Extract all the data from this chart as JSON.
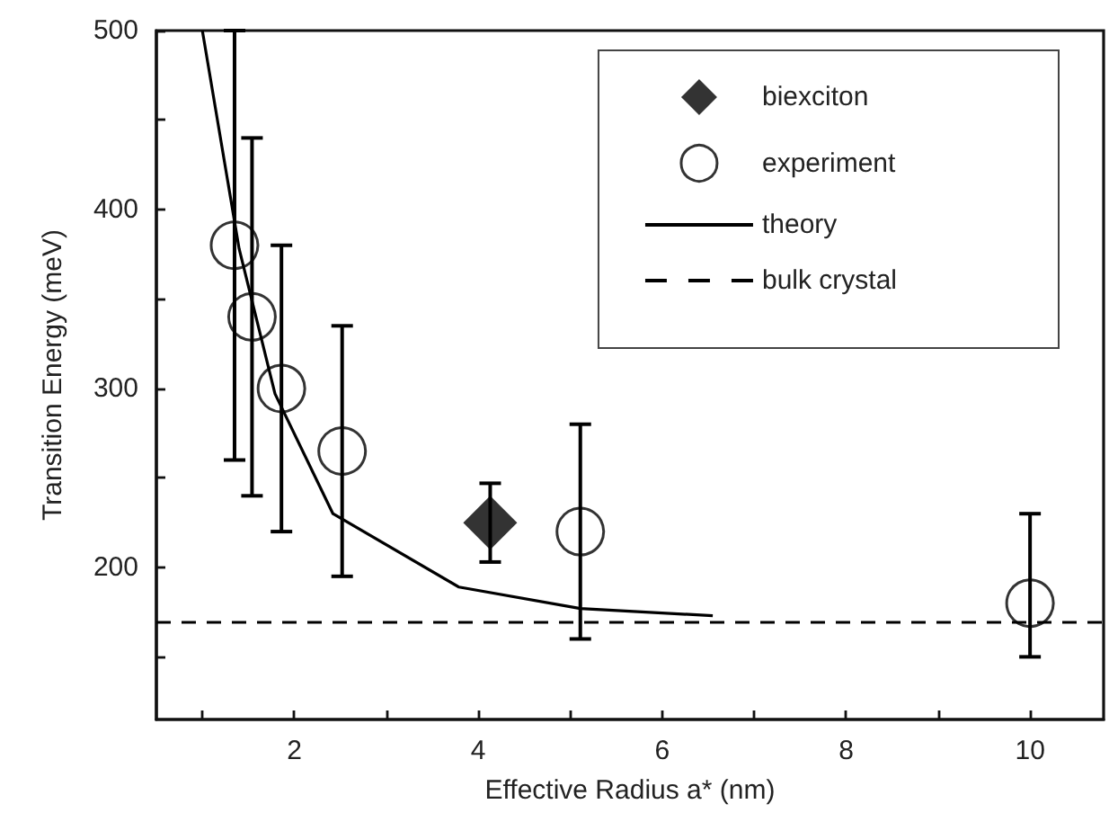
{
  "chart_data": {
    "type": "scatter",
    "xlabel": "Effective Radius a* (nm)",
    "ylabel": "Transition Energy (meV)",
    "xlim": [
      0.5,
      10.8
    ],
    "ylim": [
      115,
      500
    ],
    "xticks": [
      {
        "value": 1,
        "label": null
      },
      2,
      {
        "value": 3,
        "label": null
      },
      4,
      {
        "value": 5,
        "label": null
      },
      6,
      {
        "value": 7,
        "label": null
      },
      8,
      {
        "value": 9,
        "label": null
      },
      10
    ],
    "yticks": [
      {
        "value": 150,
        "label": null
      },
      200,
      {
        "value": 250,
        "label": null
      },
      300,
      {
        "value": 350,
        "label": null
      },
      400,
      {
        "value": 450,
        "label": null
      },
      500
    ],
    "grid": false,
    "legend": "top right",
    "series": [
      {
        "name": "biexciton",
        "marker": "diamond",
        "color": "#000000",
        "x": [
          4.13
        ],
        "values": [
          225
        ],
        "errors": [
          [
            203,
            247
          ]
        ]
      },
      {
        "name": "experiment",
        "marker": "circle",
        "color": "#000000",
        "x": [
          1.35,
          1.54,
          1.86,
          2.52,
          5.11,
          10
        ],
        "values": [
          380,
          340,
          300,
          265,
          220,
          180
        ],
        "errors": [
          [
            260,
            500
          ],
          [
            240,
            440
          ],
          [
            220,
            380
          ],
          [
            195,
            335
          ],
          [
            160,
            280
          ],
          [
            150,
            230
          ]
        ]
      },
      {
        "name": "theory",
        "type": "line",
        "marker": "none",
        "line_style": "solid",
        "color": "#000000",
        "x": [
          1.0,
          1.4,
          1.79,
          2.42,
          3.79,
          5.11,
          6.55
        ],
        "values": [
          500,
          378,
          297,
          230,
          189,
          177,
          173
        ]
      }
    ],
    "ref_lines": [
      {
        "axis": "y",
        "value": 170,
        "label": "bulk crystal",
        "color": "#000000",
        "line_style": "dashed"
      }
    ]
  }
}
